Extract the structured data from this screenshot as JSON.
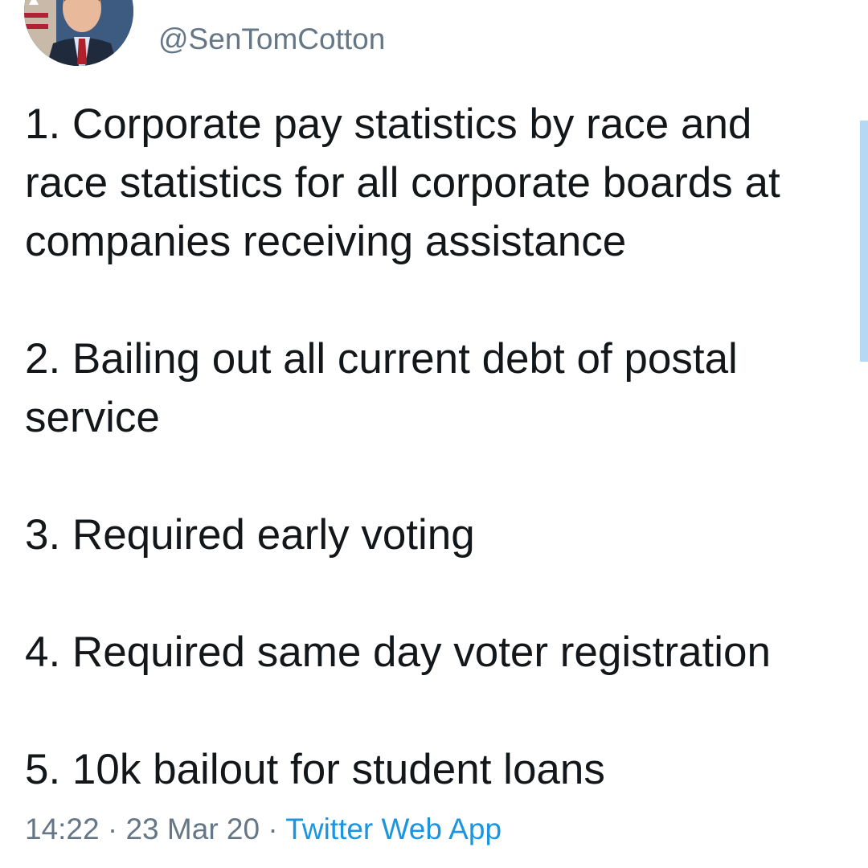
{
  "author": {
    "handle": "@SenTomCotton",
    "avatar_icon": "profile-photo"
  },
  "tweet": {
    "items": [
      "1. Corporate pay statistics by race and race statistics for all corporate boards at companies receiving assistance",
      "2. Bailing out all current debt of postal service",
      "3. Required early voting",
      "4. Required same day voter registration",
      "5. 10k bailout for student loans"
    ]
  },
  "meta": {
    "time": "14:22",
    "separator": " · ",
    "date": "23 Mar 20",
    "source": "Twitter Web App"
  },
  "colors": {
    "text": "#14171a",
    "secondary": "#657786",
    "link": "#1b95e0",
    "scrollbar": "#b5d8f5"
  }
}
